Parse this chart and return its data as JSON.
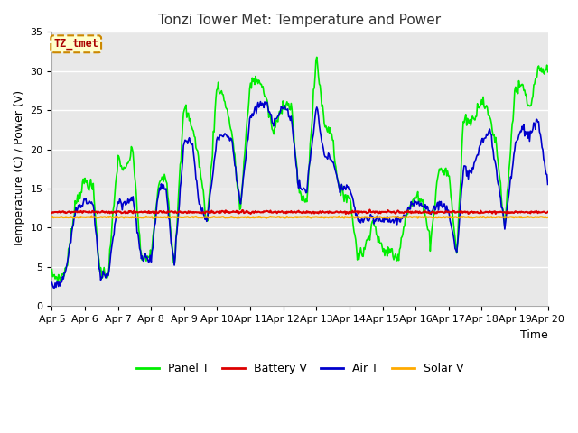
{
  "title": "Tonzi Tower Met: Temperature and Power",
  "xlabel": "Time",
  "ylabel": "Temperature (C) / Power (V)",
  "annotation": "TZ_tmet",
  "ylim": [
    0,
    35
  ],
  "xlim": [
    0,
    15
  ],
  "xtick_labels": [
    "Apr 5",
    "Apr 6",
    "Apr 7",
    "Apr 8",
    "Apr 9",
    "Apr 10",
    "Apr 11",
    "Apr 12",
    "Apr 13",
    "Apr 14",
    "Apr 15",
    "Apr 16",
    "Apr 17",
    "Apr 18",
    "Apr 19",
    "Apr 20"
  ],
  "legend_entries": [
    "Panel T",
    "Battery V",
    "Air T",
    "Solar V"
  ],
  "legend_colors": [
    "#00ee00",
    "#dd0000",
    "#0000cc",
    "#ffaa00"
  ],
  "panel_t_color": "#00ee00",
  "battery_v_color": "#dd0000",
  "air_t_color": "#0000cc",
  "solar_v_color": "#ffaa00",
  "fig_bg_color": "#ffffff",
  "plot_bg_color": "#e8e8e8",
  "title_fontsize": 11,
  "axis_fontsize": 9,
  "tick_fontsize": 8,
  "grid_color": "#ffffff",
  "yticks": [
    0,
    5,
    10,
    15,
    20,
    25,
    30,
    35
  ],
  "battery_v_value": 12.0,
  "solar_v_value": 11.35
}
